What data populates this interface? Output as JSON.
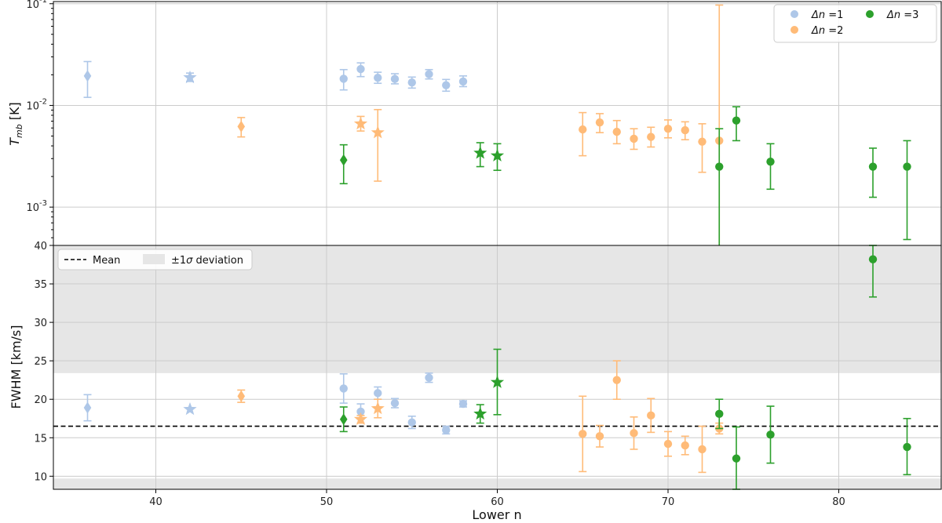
{
  "chart_data": [
    {
      "type": "scatter",
      "panel": "top",
      "ylabel": "T_mb [K]",
      "ylabel_main": "T",
      "ylabel_sub": "mb",
      "ylabel_unit": " [K]",
      "yscale": "log",
      "ylim": [
        0.00042,
        0.105
      ],
      "xlim": [
        34,
        86
      ],
      "x_ticks": [
        40,
        50,
        60,
        70,
        80
      ],
      "y_ticks": [
        {
          "value": 0.1,
          "base": "10",
          "exp": "-1"
        },
        {
          "value": 0.01,
          "base": "10",
          "exp": "-2"
        },
        {
          "value": 0.001,
          "base": "10",
          "exp": "-3"
        }
      ],
      "grid": true,
      "legend": {
        "placement": "top-right",
        "entries": [
          {
            "prefix": "Δn",
            "text": " =1",
            "series": "dn1"
          },
          {
            "prefix": "Δn",
            "text": " =2",
            "series": "dn2"
          },
          {
            "prefix": "Δn",
            "text": " =3",
            "series": "dn3"
          }
        ]
      },
      "series": [
        {
          "id": "dn1",
          "color": "#aec7e8",
          "points": [
            {
              "x": 36,
              "y": 0.0195,
              "lo": 0.012,
              "hi": 0.027,
              "marker": "diamond"
            },
            {
              "x": 42,
              "y": 0.0188,
              "lo": 0.0172,
              "hi": 0.0208,
              "marker": "star"
            },
            {
              "x": 51,
              "y": 0.0183,
              "lo": 0.0142,
              "hi": 0.0225,
              "marker": "circle"
            },
            {
              "x": 52,
              "y": 0.0228,
              "lo": 0.0192,
              "hi": 0.0262,
              "marker": "circle"
            },
            {
              "x": 53,
              "y": 0.0187,
              "lo": 0.0165,
              "hi": 0.0212,
              "marker": "circle"
            },
            {
              "x": 54,
              "y": 0.0182,
              "lo": 0.0163,
              "hi": 0.0205,
              "marker": "circle"
            },
            {
              "x": 55,
              "y": 0.0168,
              "lo": 0.0148,
              "hi": 0.019,
              "marker": "circle"
            },
            {
              "x": 56,
              "y": 0.0203,
              "lo": 0.0182,
              "hi": 0.0225,
              "marker": "circle"
            },
            {
              "x": 57,
              "y": 0.0158,
              "lo": 0.0138,
              "hi": 0.018,
              "marker": "circle"
            },
            {
              "x": 58,
              "y": 0.0172,
              "lo": 0.0153,
              "hi": 0.0195,
              "marker": "circle"
            }
          ]
        },
        {
          "id": "dn2",
          "color": "#ffbb78",
          "points": [
            {
              "x": 45,
              "y": 0.0062,
              "lo": 0.0049,
              "hi": 0.0076,
              "marker": "diamond"
            },
            {
              "x": 52,
              "y": 0.0066,
              "lo": 0.0056,
              "hi": 0.0078,
              "marker": "star"
            },
            {
              "x": 53,
              "y": 0.0054,
              "lo": 0.0018,
              "hi": 0.0091,
              "marker": "star"
            },
            {
              "x": 65,
              "y": 0.0058,
              "lo": 0.0032,
              "hi": 0.0085,
              "marker": "circle"
            },
            {
              "x": 66,
              "y": 0.0068,
              "lo": 0.0054,
              "hi": 0.0083,
              "marker": "circle"
            },
            {
              "x": 67,
              "y": 0.0055,
              "lo": 0.0042,
              "hi": 0.0071,
              "marker": "circle"
            },
            {
              "x": 68,
              "y": 0.0047,
              "lo": 0.0037,
              "hi": 0.0059,
              "marker": "circle"
            },
            {
              "x": 69,
              "y": 0.0049,
              "lo": 0.0039,
              "hi": 0.0061,
              "marker": "circle"
            },
            {
              "x": 70,
              "y": 0.0059,
              "lo": 0.0048,
              "hi": 0.0072,
              "marker": "circle"
            },
            {
              "x": 71,
              "y": 0.0057,
              "lo": 0.0046,
              "hi": 0.0069,
              "marker": "circle"
            },
            {
              "x": 72,
              "y": 0.0044,
              "lo": 0.0022,
              "hi": 0.0066,
              "marker": "circle"
            },
            {
              "x": 73,
              "y": 0.0045,
              "lo": 0.0004,
              "hi": 0.097,
              "marker": "circle"
            }
          ]
        },
        {
          "id": "dn3",
          "color": "#2ca02c",
          "points": [
            {
              "x": 51,
              "y": 0.0029,
              "lo": 0.0017,
              "hi": 0.0041,
              "marker": "diamond"
            },
            {
              "x": 59,
              "y": 0.0034,
              "lo": 0.0025,
              "hi": 0.0043,
              "marker": "star"
            },
            {
              "x": 60,
              "y": 0.0032,
              "lo": 0.0023,
              "hi": 0.0042,
              "marker": "star"
            },
            {
              "x": 73,
              "y": 0.0025,
              "lo": 0.0004,
              "hi": 0.0059,
              "marker": "circle"
            },
            {
              "x": 74,
              "y": 0.0071,
              "lo": 0.0045,
              "hi": 0.0097,
              "marker": "circle"
            },
            {
              "x": 76,
              "y": 0.0028,
              "lo": 0.0015,
              "hi": 0.0042,
              "marker": "circle"
            },
            {
              "x": 82,
              "y": 0.0025,
              "lo": 0.00125,
              "hi": 0.0038,
              "marker": "circle"
            },
            {
              "x": 84,
              "y": 0.0025,
              "lo": 0.00048,
              "hi": 0.0045,
              "marker": "circle"
            }
          ]
        }
      ]
    },
    {
      "type": "scatter",
      "panel": "bottom",
      "xlabel": "Lower n",
      "ylabel": "FWHM [km/s]",
      "ylim": [
        8.3,
        40
      ],
      "xlim": [
        34,
        86
      ],
      "x_ticks": [
        40,
        50,
        60,
        70,
        80
      ],
      "y_ticks": [
        10,
        15,
        20,
        25,
        30,
        35,
        40
      ],
      "grid": true,
      "mean": 16.5,
      "band": [
        9.7,
        23.4
      ],
      "legend": {
        "placement": "top-left",
        "entries": [
          {
            "text": "Mean",
            "kind": "dashed-line"
          },
          {
            "text_pre": "±1",
            "text_sym": "σ",
            "text_post": " deviation",
            "kind": "band"
          }
        ]
      },
      "series": [
        {
          "id": "dn1",
          "color": "#aec7e8",
          "points": [
            {
              "x": 36,
              "y": 18.9,
              "lo": 17.2,
              "hi": 20.6,
              "marker": "diamond"
            },
            {
              "x": 42,
              "y": 18.7,
              "lo": 18.7,
              "hi": 18.7,
              "marker": "star"
            },
            {
              "x": 51,
              "y": 21.4,
              "lo": 19.5,
              "hi": 23.3,
              "marker": "circle"
            },
            {
              "x": 52,
              "y": 18.4,
              "lo": 17.4,
              "hi": 19.4,
              "marker": "circle"
            },
            {
              "x": 53,
              "y": 20.8,
              "lo": 20.0,
              "hi": 21.6,
              "marker": "circle"
            },
            {
              "x": 54,
              "y": 19.5,
              "lo": 18.9,
              "hi": 20.1,
              "marker": "circle"
            },
            {
              "x": 55,
              "y": 17.0,
              "lo": 16.2,
              "hi": 17.8,
              "marker": "circle"
            },
            {
              "x": 56,
              "y": 22.8,
              "lo": 22.2,
              "hi": 23.4,
              "marker": "circle"
            },
            {
              "x": 57,
              "y": 16.0,
              "lo": 15.5,
              "hi": 16.5,
              "marker": "circle"
            },
            {
              "x": 58,
              "y": 19.4,
              "lo": 19.0,
              "hi": 19.8,
              "marker": "circle"
            }
          ]
        },
        {
          "id": "dn2",
          "color": "#ffbb78",
          "points": [
            {
              "x": 45,
              "y": 20.4,
              "lo": 19.6,
              "hi": 21.2,
              "marker": "diamond"
            },
            {
              "x": 52,
              "y": 17.4,
              "lo": 16.9,
              "hi": 17.9,
              "marker": "star"
            },
            {
              "x": 53,
              "y": 18.8,
              "lo": 17.6,
              "hi": 20.0,
              "marker": "star"
            },
            {
              "x": 65,
              "y": 15.5,
              "lo": 10.6,
              "hi": 20.4,
              "marker": "circle"
            },
            {
              "x": 66,
              "y": 15.2,
              "lo": 13.8,
              "hi": 16.6,
              "marker": "circle"
            },
            {
              "x": 67,
              "y": 22.5,
              "lo": 20.0,
              "hi": 25.0,
              "marker": "circle"
            },
            {
              "x": 68,
              "y": 15.6,
              "lo": 13.5,
              "hi": 17.7,
              "marker": "circle"
            },
            {
              "x": 69,
              "y": 17.9,
              "lo": 15.7,
              "hi": 20.1,
              "marker": "circle"
            },
            {
              "x": 70,
              "y": 14.2,
              "lo": 12.6,
              "hi": 15.8,
              "marker": "circle"
            },
            {
              "x": 71,
              "y": 14.0,
              "lo": 12.8,
              "hi": 15.2,
              "marker": "circle"
            },
            {
              "x": 72,
              "y": 13.5,
              "lo": 10.5,
              "hi": 16.5,
              "marker": "circle"
            },
            {
              "x": 73,
              "y": 16.2,
              "lo": 15.5,
              "hi": 16.9,
              "marker": "circle"
            }
          ]
        },
        {
          "id": "dn3",
          "color": "#2ca02c",
          "points": [
            {
              "x": 51,
              "y": 17.4,
              "lo": 15.8,
              "hi": 19.0,
              "marker": "diamond"
            },
            {
              "x": 59,
              "y": 18.1,
              "lo": 16.9,
              "hi": 19.3,
              "marker": "star"
            },
            {
              "x": 60,
              "y": 22.2,
              "lo": 18.0,
              "hi": 26.5,
              "marker": "star"
            },
            {
              "x": 73,
              "y": 18.1,
              "lo": 16.2,
              "hi": 20.0,
              "marker": "circle"
            },
            {
              "x": 74,
              "y": 12.3,
              "lo": 8.3,
              "hi": 16.4,
              "marker": "circle"
            },
            {
              "x": 76,
              "y": 15.4,
              "lo": 11.7,
              "hi": 19.1,
              "marker": "circle"
            },
            {
              "x": 82,
              "y": 38.2,
              "lo": 33.3,
              "hi": 40.0,
              "marker": "circle"
            },
            {
              "x": 84,
              "y": 13.8,
              "lo": 10.2,
              "hi": 17.5,
              "marker": "circle"
            }
          ]
        }
      ]
    }
  ]
}
